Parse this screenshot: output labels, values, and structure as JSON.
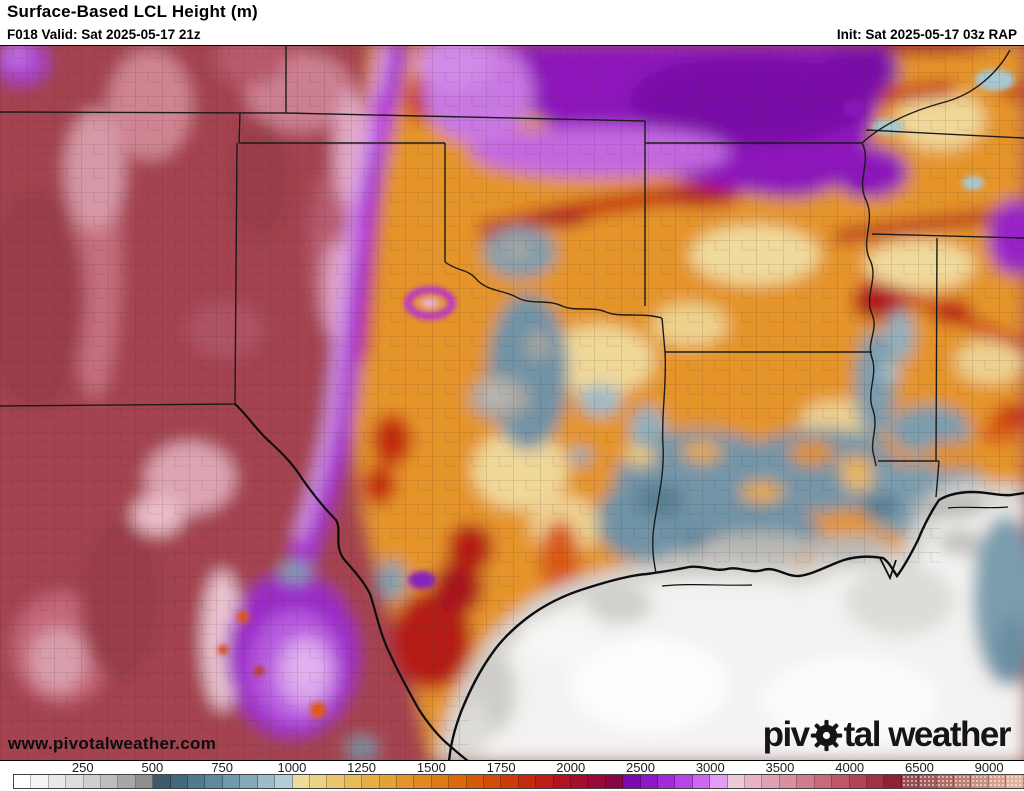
{
  "header": {
    "title": "Surface-Based LCL Height (m)",
    "left_meta": "F018 Valid: Sat 2025-05-17 21z",
    "right_meta": "Init: Sat 2025-05-17 03z RAP"
  },
  "map": {
    "watermark": "www.pivotalweather.com",
    "logo_prefix": "piv",
    "logo_suffix": "tal weather",
    "region": "South-Central United States (Texas, Oklahoma, Arkansas, Louisiana, Gulf of Mexico)"
  },
  "chart_data": {
    "type": "heatmap",
    "title": "Surface-Based LCL Height (m)",
    "model": "RAP",
    "forecast_hour": "F018",
    "valid_time": "Sat 2025-05-17 21z",
    "init_time": "Sat 2025-05-17 03z",
    "unit": "m",
    "scale_ticks": [
      250,
      500,
      750,
      1000,
      1250,
      1500,
      1750,
      2000,
      2500,
      3000,
      3500,
      4000,
      6500,
      9000
    ],
    "legend_position": "bottom",
    "notable_values": {
      "gulf_of_mexico": "0-250 (white/gray)",
      "louisiana_mississippi_coastal_plain": "500-1000 (blue)",
      "central_texas_oklahoma_arkansas": "1000-2250 (orange/red)",
      "dryline_band_and_south_texas": "2250-3500 (purple/lavender)",
      "west_texas_new_mexico": "4000-9000 (rose/maroon)"
    }
  },
  "colorbar": {
    "stipple_from": 51,
    "segments": [
      "#ffffff",
      "#f4f4f4",
      "#e9e9e9",
      "#dddddd",
      "#cfcfcf",
      "#bdbdbd",
      "#a7a7a7",
      "#8f8f8f",
      "#3d5a6c",
      "#44687e",
      "#4f7a92",
      "#6089a0",
      "#7099ae",
      "#84aaba",
      "#9bbcc8",
      "#b2ced6",
      "#eedc9a",
      "#ecd284",
      "#eac76e",
      "#e8bb58",
      "#e6ae45",
      "#e4a136",
      "#e2952c",
      "#e08922",
      "#dd7a16",
      "#da6a0d",
      "#d65b07",
      "#d14c06",
      "#cb3a0a",
      "#c42a10",
      "#bb1d18",
      "#b11322",
      "#a60d2d",
      "#990839",
      "#8b0544",
      "#7a0ab0",
      "#8e18c8",
      "#a22ad8",
      "#b744e6",
      "#cf68f0",
      "#e49cf6",
      "#eec9d8",
      "#e6b4c4",
      "#dfa2b2",
      "#d88fa0",
      "#d07c8e",
      "#c8697c",
      "#bf5669",
      "#b44356",
      "#a33145",
      "#8e2136",
      "#9a4a50",
      "#a65a5a",
      "#b26c64",
      "#be7e70",
      "#ca907e",
      "#d6a28e",
      "#e2b4a0"
    ],
    "ticks": [
      {
        "label": "250",
        "pct": 6.9
      },
      {
        "label": "500",
        "pct": 13.79
      },
      {
        "label": "750",
        "pct": 20.69
      },
      {
        "label": "1000",
        "pct": 27.59
      },
      {
        "label": "1250",
        "pct": 34.48
      },
      {
        "label": "1500",
        "pct": 41.38
      },
      {
        "label": "1750",
        "pct": 48.28
      },
      {
        "label": "2000",
        "pct": 55.17
      },
      {
        "label": "2500",
        "pct": 62.07
      },
      {
        "label": "3000",
        "pct": 68.97
      },
      {
        "label": "3500",
        "pct": 75.86
      },
      {
        "label": "4000",
        "pct": 82.76
      },
      {
        "label": "6500",
        "pct": 89.66
      },
      {
        "label": "9000",
        "pct": 96.55
      }
    ]
  }
}
